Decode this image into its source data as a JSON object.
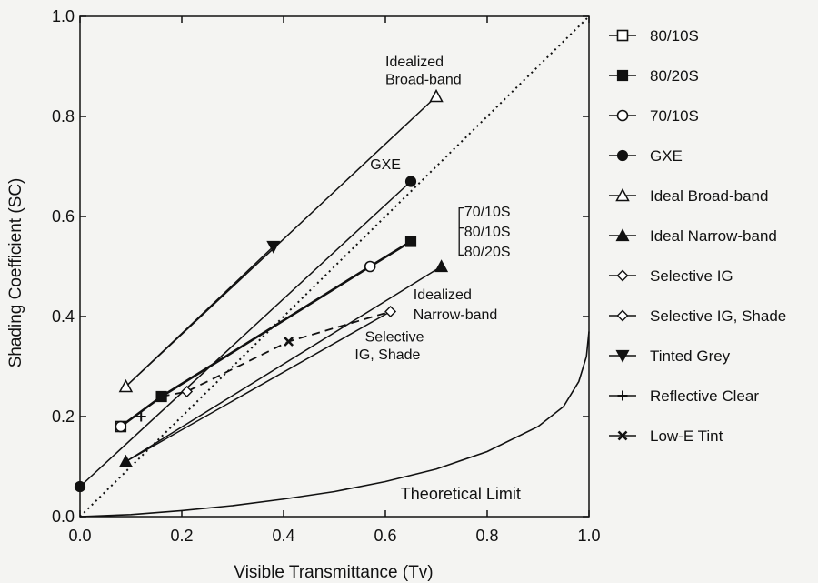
{
  "chart_data": {
    "type": "line",
    "xlabel": "Visible Transmittance (Tv)",
    "ylabel": "Shading Coefficient (SC)",
    "xlim": [
      0,
      1
    ],
    "ylim": [
      0,
      1
    ],
    "x_ticks": [
      "0.0",
      "0.2",
      "0.4",
      "0.6",
      "0.8",
      "1.0"
    ],
    "y_ticks": [
      "0.0",
      "0.2",
      "0.4",
      "0.6",
      "0.8",
      "1.0"
    ],
    "x_tick_values": [
      0,
      0.2,
      0.4,
      0.6,
      0.8,
      1.0
    ],
    "y_tick_values": [
      0,
      0.2,
      0.4,
      0.6,
      0.8,
      1.0
    ],
    "grid": false,
    "legend_position": "right",
    "legend": [
      {
        "label": "80/10S",
        "marker": "square-open"
      },
      {
        "label": "80/20S",
        "marker": "square-filled"
      },
      {
        "label": "70/10S",
        "marker": "circle-open"
      },
      {
        "label": "GXE",
        "marker": "circle-filled"
      },
      {
        "label": "Ideal Broad-band",
        "marker": "triangle-up-open"
      },
      {
        "label": "Ideal Narrow-band",
        "marker": "triangle-up-filled"
      },
      {
        "label": "Selective IG",
        "marker": "diamond-open"
      },
      {
        "label": "Selective IG, Shade",
        "marker": "diamond-open"
      },
      {
        "label": "Tinted Grey",
        "marker": "triangle-down-filled"
      },
      {
        "label": "Reflective Clear",
        "marker": "plus"
      },
      {
        "label": "Low-E Tint",
        "marker": "x"
      }
    ],
    "lines": [
      {
        "points": [
          [
            0.09,
            0.26
          ],
          [
            0.7,
            0.84
          ]
        ],
        "style": "solid"
      },
      {
        "points": [
          [
            0.09,
            0.11
          ],
          [
            0.71,
            0.5
          ]
        ],
        "style": "solid"
      },
      {
        "points": [
          [
            0.0,
            0.06
          ],
          [
            0.65,
            0.67
          ]
        ],
        "style": "solid"
      },
      {
        "points": [
          [
            0.09,
            0.26
          ],
          [
            0.38,
            0.54
          ]
        ],
        "style": "solid"
      },
      {
        "points": [
          [
            0.08,
            0.18
          ],
          [
            0.16,
            0.24
          ],
          [
            0.57,
            0.5
          ],
          [
            0.65,
            0.55
          ]
        ],
        "style": "solid-thick"
      },
      {
        "points": [
          [
            0.09,
            0.11
          ],
          [
            0.61,
            0.41
          ]
        ],
        "style": "solid"
      },
      {
        "points": [
          [
            0.16,
            0.24
          ],
          [
            0.21,
            0.25
          ],
          [
            0.41,
            0.35
          ],
          [
            0.61,
            0.41
          ]
        ],
        "style": "dashed"
      },
      {
        "points": [
          [
            0,
            0
          ],
          [
            1,
            1
          ]
        ],
        "style": "dotted"
      }
    ],
    "markers": [
      {
        "x": 0.08,
        "y": 0.18,
        "marker": "square-open"
      },
      {
        "x": 0.16,
        "y": 0.24,
        "marker": "square-filled"
      },
      {
        "x": 0.65,
        "y": 0.55,
        "marker": "square-filled"
      },
      {
        "x": 0.08,
        "y": 0.18,
        "marker": "circle-open"
      },
      {
        "x": 0.57,
        "y": 0.5,
        "marker": "circle-open"
      },
      {
        "x": 0.0,
        "y": 0.06,
        "marker": "circle-filled"
      },
      {
        "x": 0.65,
        "y": 0.67,
        "marker": "circle-filled"
      },
      {
        "x": 0.09,
        "y": 0.26,
        "marker": "triangle-up-open"
      },
      {
        "x": 0.7,
        "y": 0.84,
        "marker": "triangle-up-open"
      },
      {
        "x": 0.09,
        "y": 0.11,
        "marker": "triangle-up-filled"
      },
      {
        "x": 0.71,
        "y": 0.5,
        "marker": "triangle-up-filled"
      },
      {
        "x": 0.21,
        "y": 0.25,
        "marker": "diamond-open"
      },
      {
        "x": 0.61,
        "y": 0.41,
        "marker": "diamond-open"
      },
      {
        "x": 0.38,
        "y": 0.54,
        "marker": "triangle-down-filled"
      },
      {
        "x": 0.12,
        "y": 0.2,
        "marker": "plus"
      },
      {
        "x": 0.41,
        "y": 0.35,
        "marker": "x"
      }
    ],
    "theoretical_limit": {
      "x": [
        0.0,
        0.1,
        0.2,
        0.3,
        0.4,
        0.5,
        0.6,
        0.7,
        0.8,
        0.9,
        0.95,
        0.98,
        0.995,
        1.0
      ],
      "y": [
        0.0,
        0.004,
        0.012,
        0.022,
        0.035,
        0.05,
        0.07,
        0.095,
        0.13,
        0.18,
        0.22,
        0.27,
        0.32,
        0.37
      ]
    },
    "annotations": [
      {
        "text": "Idealized",
        "x": 0.6,
        "y": 0.9
      },
      {
        "text": "Broad-band",
        "x": 0.6,
        "y": 0.865
      },
      {
        "text": "GXE",
        "x": 0.57,
        "y": 0.695
      },
      {
        "text": "70/10S",
        "x": 0.755,
        "y": 0.6
      },
      {
        "text": "80/10S",
        "x": 0.755,
        "y": 0.56
      },
      {
        "text": "80/20S",
        "x": 0.755,
        "y": 0.52
      },
      {
        "text": "Idealized",
        "x": 0.655,
        "y": 0.435
      },
      {
        "text": "Narrow-band",
        "x": 0.655,
        "y": 0.395
      },
      {
        "text": "Selective",
        "x": 0.56,
        "y": 0.35
      },
      {
        "text": "IG, Shade",
        "x": 0.54,
        "y": 0.315
      },
      {
        "text": "Theoretical Limit",
        "x": 0.63,
        "y": 0.035
      }
    ]
  }
}
